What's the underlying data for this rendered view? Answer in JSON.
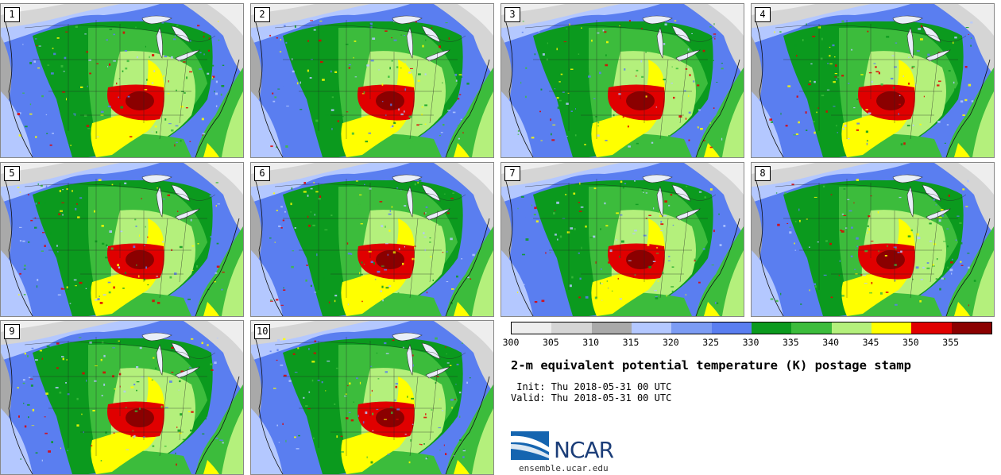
{
  "panels": [
    {
      "label": "1"
    },
    {
      "label": "2"
    },
    {
      "label": "3"
    },
    {
      "label": "4"
    },
    {
      "label": "5"
    },
    {
      "label": "6"
    },
    {
      "label": "7"
    },
    {
      "label": "8"
    },
    {
      "label": "9"
    },
    {
      "label": "10"
    }
  ],
  "colorbar": {
    "colors": [
      "#eeeeee",
      "#d5d5d5",
      "#a9a9a9",
      "#b4c8ff",
      "#7c9cf4",
      "#5a7ef0",
      "#0b9a1e",
      "#3cbc3c",
      "#b4f07c",
      "#ffff00",
      "#e00000",
      "#8b0000"
    ],
    "ticks": [
      "300",
      "305",
      "310",
      "315",
      "320",
      "325",
      "330",
      "335",
      "340",
      "345",
      "350",
      "355"
    ]
  },
  "title": "2-m equivalent potential temperature (K) postage stamp",
  "init": " Init: Thu 2018-05-31 00 UTC",
  "valid": "Valid: Thu 2018-05-31 00 UTC",
  "logo": {
    "text": "NCAR",
    "url": "ensemble.ucar.edu"
  }
}
